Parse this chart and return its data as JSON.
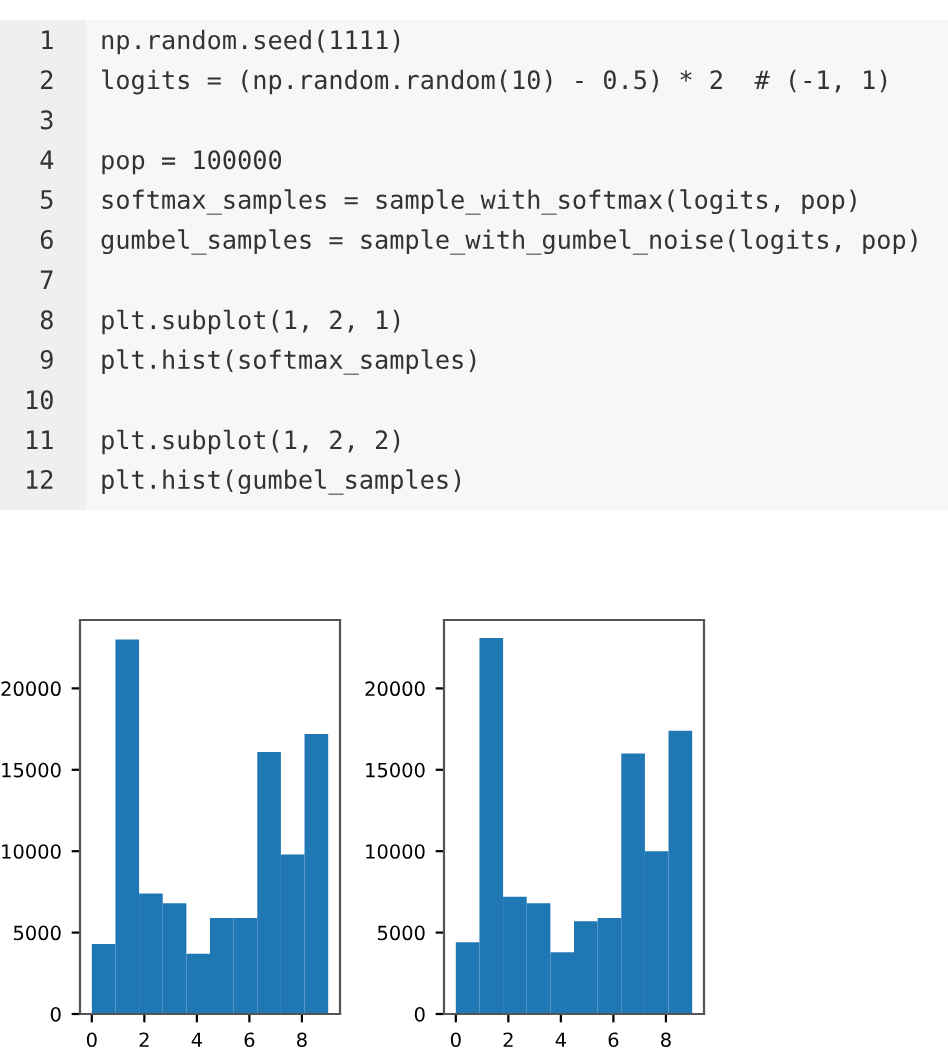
{
  "chart_data": [
    {
      "type": "other",
      "annotations": [
        " 1   np.random.seed(1111)",
        " 2   logits = (np.random.random(10) - 0.5) * 2  # (-1, 1)",
        " 3",
        " 4   pop = 100000",
        " 5   softmax_samples = sample_with_softmax(logits, pop)",
        " 6   gumbel_samples = sample_with_gumbel_noise(logits, pop)",
        " 7",
        " 8   plt.subplot(1, 2, 1)",
        " 9   plt.hist(softmax_samples)",
        "10",
        "11   plt.subplot(1, 2, 2)",
        "12   plt.hist(gumbel_samples)"
      ]
    },
    {
      "type": "histogram",
      "bins": [
        0,
        0.9,
        1.8,
        2.7,
        3.6,
        4.5,
        5.4,
        6.3,
        7.2,
        8.1,
        9
      ],
      "color": "#1f77b4",
      "values": [
        4300,
        23000,
        7400,
        6800,
        3700,
        5900,
        5900,
        16100,
        9800,
        17200
      ],
      "xlim": [
        -0.45,
        9.45
      ],
      "xticks": [
        0,
        2,
        4,
        6,
        8
      ],
      "ylim": [
        0,
        24200
      ],
      "yticks": [
        0,
        5000,
        10000,
        15000,
        20000
      ],
      "grid": false
    },
    {
      "type": "histogram",
      "bins": [
        0,
        0.9,
        1.8,
        2.7,
        3.6,
        4.5,
        5.4,
        6.3,
        7.2,
        8.1,
        9
      ],
      "color": "#1f77b4",
      "values": [
        4400,
        23100,
        7200,
        6800,
        3800,
        5700,
        5900,
        16000,
        10000,
        17400
      ],
      "xlim": [
        -0.45,
        9.45
      ],
      "xticks": [
        0,
        2,
        4,
        6,
        8
      ],
      "ylim": [
        0,
        24200
      ],
      "yticks": [
        0,
        5000,
        10000,
        15000,
        20000
      ],
      "grid": false
    }
  ]
}
